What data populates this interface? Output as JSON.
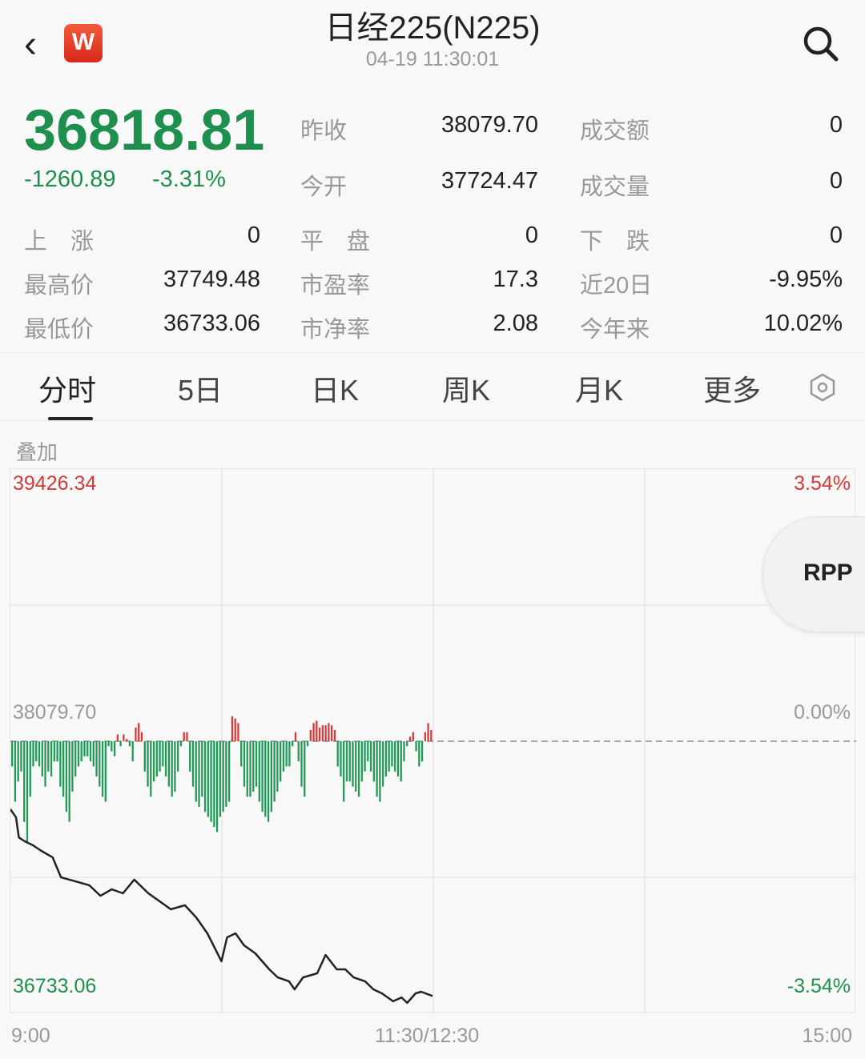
{
  "header": {
    "title": "日经225(N225)",
    "timestamp": "04-19 11:30:01",
    "logo_letter": "W",
    "back_icon": "chevron-left-icon",
    "search_icon": "search-icon"
  },
  "quote": {
    "price": "36818.81",
    "change": "-1260.89",
    "change_pct": "-3.31%",
    "color_down": "#1f8f4e",
    "color_up": "#d23a3a"
  },
  "stats": [
    {
      "label": "昨收",
      "value": "38079.70"
    },
    {
      "label": "成交额",
      "value": "0"
    },
    {
      "label": "今开",
      "value": "37724.47"
    },
    {
      "label": "成交量",
      "value": "0"
    },
    {
      "label": "上　涨",
      "value": "0"
    },
    {
      "label": "平　盘",
      "value": "0"
    },
    {
      "label": "下　跌",
      "value": "0"
    },
    {
      "label": "最高价",
      "value": "37749.48"
    },
    {
      "label": "市盈率",
      "value": "17.3"
    },
    {
      "label": "近20日",
      "value": "-9.95%"
    },
    {
      "label": "最低价",
      "value": "36733.06"
    },
    {
      "label": "市净率",
      "value": "2.08"
    },
    {
      "label": "今年来",
      "value": "10.02%"
    }
  ],
  "tabs": [
    {
      "label": "分时",
      "active": true
    },
    {
      "label": "5日"
    },
    {
      "label": "日K"
    },
    {
      "label": "周K"
    },
    {
      "label": "月K"
    },
    {
      "label": "更多"
    }
  ],
  "settings_icon": "hexagon-settings-icon",
  "overlay_label": "叠加",
  "rpp_label": "RPP",
  "chart_data": {
    "type": "line",
    "y_left_labels": {
      "top": "39426.34",
      "mid": "38079.70",
      "bottom": "36733.06"
    },
    "y_right_labels": {
      "top": "3.54%",
      "mid": "0.00%",
      "bottom": "-3.54%"
    },
    "x_labels": [
      "9:00",
      "11:30/12:30",
      "15:00"
    ],
    "ylim": [
      36733.06,
      39426.34
    ],
    "prev_close": 38079.7,
    "price_series": [
      [
        "09:00",
        37743
      ],
      [
        "09:02",
        37703
      ],
      [
        "09:03",
        37604
      ],
      [
        "09:05",
        37585
      ],
      [
        "09:08",
        37565
      ],
      [
        "09:11",
        37537
      ],
      [
        "09:15",
        37505
      ],
      [
        "09:18",
        37406
      ],
      [
        "09:23",
        37387
      ],
      [
        "09:28",
        37367
      ],
      [
        "09:32",
        37315
      ],
      [
        "09:36",
        37347
      ],
      [
        "09:40",
        37327
      ],
      [
        "09:44",
        37395
      ],
      [
        "09:49",
        37327
      ],
      [
        "09:53",
        37288
      ],
      [
        "09:57",
        37248
      ],
      [
        "10:02",
        37268
      ],
      [
        "10:06",
        37208
      ],
      [
        "10:10",
        37129
      ],
      [
        "10:15",
        36991
      ],
      [
        "10:17",
        37109
      ],
      [
        "10:20",
        37129
      ],
      [
        "10:23",
        37070
      ],
      [
        "10:27",
        37030
      ],
      [
        "10:32",
        36951
      ],
      [
        "10:35",
        36911
      ],
      [
        "10:39",
        36892
      ],
      [
        "10:41",
        36852
      ],
      [
        "10:44",
        36911
      ],
      [
        "10:49",
        36931
      ],
      [
        "10:52",
        37022
      ],
      [
        "10:56",
        36951
      ],
      [
        "10:59",
        36951
      ],
      [
        "11:02",
        36911
      ],
      [
        "11:06",
        36892
      ],
      [
        "11:09",
        36852
      ],
      [
        "11:12",
        36832
      ],
      [
        "11:16",
        36793
      ],
      [
        "11:19",
        36812
      ],
      [
        "11:21",
        36785
      ],
      [
        "11:24",
        36832
      ],
      [
        "11:26",
        36840
      ],
      [
        "11:30",
        36819
      ]
    ],
    "bar_series": [
      -25,
      -60,
      -40,
      -30,
      -80,
      -100,
      -55,
      -25,
      -20,
      -25,
      -35,
      -45,
      -30,
      -35,
      -20,
      -20,
      -45,
      -55,
      -70,
      -80,
      -50,
      -35,
      -25,
      -20,
      -15,
      -15,
      -20,
      -25,
      -35,
      -45,
      -55,
      -60,
      -5,
      -10,
      -15,
      15,
      -5,
      15,
      5,
      -5,
      -20,
      30,
      40,
      20,
      -30,
      -45,
      -55,
      -40,
      -35,
      -30,
      -25,
      -35,
      -45,
      -55,
      -50,
      -30,
      -5,
      20,
      20,
      -30,
      -45,
      -60,
      -65,
      -55,
      -70,
      -75,
      -80,
      -85,
      -90,
      -75,
      -70,
      -65,
      -60,
      55,
      50,
      40,
      -25,
      -45,
      -55,
      -55,
      -50,
      -45,
      -60,
      -70,
      -75,
      -80,
      -70,
      -60,
      -50,
      -40,
      -30,
      -25,
      -25,
      -5,
      20,
      -20,
      -45,
      -55,
      -5,
      25,
      40,
      45,
      30,
      35,
      35,
      40,
      35,
      25,
      -25,
      -35,
      -60,
      -40,
      -40,
      -45,
      -50,
      -55,
      -40,
      -30,
      -20,
      -30,
      -40,
      -55,
      -60,
      -45,
      -35,
      -30,
      -25,
      -30,
      -35,
      -40,
      -20,
      -5,
      10,
      20,
      -10,
      -25,
      -20,
      20,
      40,
      25
    ],
    "grid": true
  }
}
